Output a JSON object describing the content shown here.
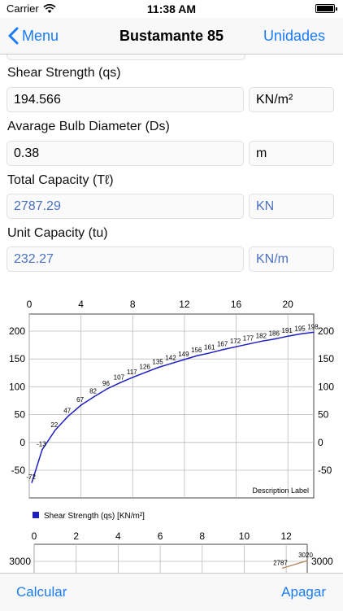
{
  "status": {
    "carrier": "Carrier",
    "time": "11:38 AM"
  },
  "nav": {
    "back_label": "Menu",
    "title": "Bustamante 85",
    "right_label": "Unidades"
  },
  "form": {
    "shear_strength": {
      "label": "Shear Strength (qs)",
      "value": "194.566",
      "unit": "KN/m²"
    },
    "bulb_diameter": {
      "label": "Avarage Bulb Diameter (Ds)",
      "value": "0.38",
      "unit": "m"
    },
    "total_capacity": {
      "label": "Total Capacity (Tℓ)",
      "value": "2787.29",
      "unit": "KN"
    },
    "unit_capacity": {
      "label": "Unit Capacity (tu)",
      "value": "232.27",
      "unit": "KN/m"
    }
  },
  "toolbar": {
    "left_label": "Calcular",
    "right_label": "Apagar"
  },
  "colors": {
    "accent": "#1a7cf5",
    "series1": "#1f1fbf",
    "series2": "#b08a5a",
    "readonly_text": "#4a72c0"
  },
  "chart_data": [
    {
      "type": "line",
      "xlim": [
        0,
        22
      ],
      "ylim": [
        -80,
        220
      ],
      "x_ticks": [
        0,
        4,
        8,
        12,
        16,
        20
      ],
      "y_ticks": [
        -50,
        0,
        50,
        100,
        150,
        200
      ],
      "description": "Description Label",
      "legend_position": "bottom-left",
      "grid": true,
      "series": [
        {
          "name": "Shear Strength (qs) [KN/m²]",
          "color": "#1f1fbf",
          "points": [
            {
              "x": 0.2,
              "y": -72,
              "label": "-72"
            },
            {
              "x": 1,
              "y": -13,
              "label": "-13"
            },
            {
              "x": 2,
              "y": 22,
              "label": "22"
            },
            {
              "x": 3,
              "y": 47,
              "label": "47"
            },
            {
              "x": 4,
              "y": 67,
              "label": "67"
            },
            {
              "x": 5,
              "y": 82,
              "label": "82"
            },
            {
              "x": 6,
              "y": 96,
              "label": "96"
            },
            {
              "x": 7,
              "y": 107,
              "label": "107"
            },
            {
              "x": 8,
              "y": 117,
              "label": "117"
            },
            {
              "x": 9,
              "y": 126,
              "label": "126"
            },
            {
              "x": 10,
              "y": 135,
              "label": "135"
            },
            {
              "x": 11,
              "y": 142,
              "label": "142"
            },
            {
              "x": 12,
              "y": 149,
              "label": "149"
            },
            {
              "x": 13,
              "y": 156,
              "label": "156"
            },
            {
              "x": 14,
              "y": 161,
              "label": "161"
            },
            {
              "x": 15,
              "y": 167,
              "label": "167"
            },
            {
              "x": 16,
              "y": 172,
              "label": "172"
            },
            {
              "x": 17,
              "y": 177,
              "label": "177"
            },
            {
              "x": 18,
              "y": 182,
              "label": "182"
            },
            {
              "x": 19,
              "y": 186,
              "label": "186"
            },
            {
              "x": 20,
              "y": 191,
              "label": "191"
            },
            {
              "x": 21,
              "y": 195,
              "label": "195"
            },
            {
              "x": 22,
              "y": 198,
              "label": "198"
            }
          ]
        }
      ]
    },
    {
      "type": "line",
      "xlim": [
        0,
        13
      ],
      "x_ticks": [
        0,
        2,
        4,
        6,
        8,
        10,
        12
      ],
      "y_ticks": [
        3000
      ],
      "series": [
        {
          "color": "#b08a5a",
          "points": [
            {
              "x": 11.8,
              "y": 2787,
              "label": "2787"
            },
            {
              "x": 13,
              "y": 3020,
              "label": "3020"
            }
          ]
        }
      ]
    }
  ]
}
